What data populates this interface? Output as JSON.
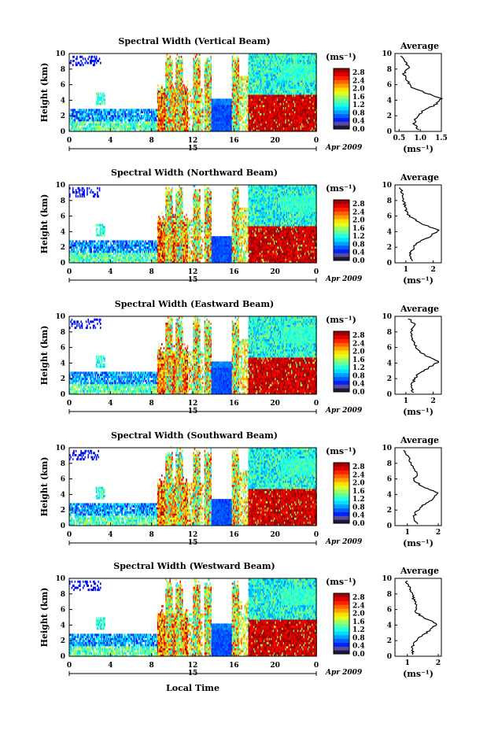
{
  "figure": {
    "x_axis_label": "Local Time",
    "y_axis_label": "Height (km)",
    "date_label": "Apr 2009",
    "day_label": "15",
    "colorbar_unit": "(ms⁻¹)",
    "average_title": "Average",
    "average_unit": "(ms⁻¹)"
  },
  "chart_data": [
    {
      "type": "heatmap",
      "title": "Spectral Width (Vertical Beam)",
      "x_ticks": [
        "0",
        "4",
        "8",
        "12",
        "16",
        "20",
        "0"
      ],
      "y_ticks": [
        "0",
        "2",
        "4",
        "6",
        "8",
        "10"
      ],
      "xlim": [
        0,
        24
      ],
      "ylim": [
        0,
        10
      ],
      "colorbar_ticks": [
        "0.0",
        "0.4",
        "0.8",
        "1.2",
        "1.6",
        "2.0",
        "2.4",
        "2.8"
      ],
      "colorbar_range": [
        0,
        3.0
      ],
      "average_profile": {
        "title": "Average",
        "x_ticks": [
          "0.5",
          "1.0",
          "1.5"
        ],
        "xlim": [
          0.4,
          1.5
        ],
        "heights": [
          0.2,
          1.0,
          1.8,
          2.6,
          3.4,
          4.2,
          5.0,
          5.8,
          6.6,
          7.4,
          8.2,
          9.0,
          9.8
        ],
        "values": [
          0.95,
          0.85,
          0.9,
          1.05,
          1.35,
          1.5,
          1.1,
          0.75,
          0.7,
          0.6,
          0.75,
          0.62,
          0.55
        ]
      }
    },
    {
      "type": "heatmap",
      "title": "Spectral Width (Northward Beam)",
      "x_ticks": [
        "0",
        "4",
        "8",
        "12",
        "16",
        "20",
        "0"
      ],
      "y_ticks": [
        "0",
        "2",
        "4",
        "6",
        "8",
        "10"
      ],
      "xlim": [
        0,
        24
      ],
      "ylim": [
        0,
        10
      ],
      "colorbar_ticks": [
        "0.0",
        "0.4",
        "0.8",
        "1.2",
        "1.6",
        "2.0",
        "2.4",
        "2.8"
      ],
      "colorbar_range": [
        0,
        3.0
      ],
      "average_profile": {
        "title": "Average",
        "x_ticks": [
          "1",
          "2"
        ],
        "xlim": [
          0.6,
          2.3
        ],
        "heights": [
          0.2,
          1.0,
          1.8,
          2.6,
          3.4,
          4.2,
          5.0,
          5.8,
          6.6,
          7.4,
          8.2,
          9.0,
          9.8
        ],
        "values": [
          1.2,
          1.15,
          1.25,
          1.4,
          1.9,
          2.2,
          1.6,
          1.2,
          1.0,
          0.95,
          0.9,
          0.85,
          0.8
        ]
      }
    },
    {
      "type": "heatmap",
      "title": "Spectral Width (Eastward Beam)",
      "x_ticks": [
        "0",
        "4",
        "8",
        "12",
        "16",
        "20",
        "0"
      ],
      "y_ticks": [
        "0",
        "2",
        "4",
        "6",
        "8",
        "10"
      ],
      "xlim": [
        0,
        24
      ],
      "ylim": [
        0,
        10
      ],
      "colorbar_ticks": [
        "0.0",
        "0.4",
        "0.8",
        "1.2",
        "1.6",
        "2.0",
        "2.4",
        "2.8"
      ],
      "colorbar_range": [
        0,
        3.0
      ],
      "average_profile": {
        "title": "Average",
        "x_ticks": [
          "1",
          "2"
        ],
        "xlim": [
          0.6,
          2.3
        ],
        "heights": [
          0.2,
          1.0,
          1.8,
          2.6,
          3.4,
          4.2,
          5.0,
          5.8,
          6.6,
          7.4,
          8.2,
          9.0,
          9.8
        ],
        "values": [
          1.25,
          1.2,
          1.3,
          1.45,
          1.85,
          2.2,
          1.7,
          1.4,
          1.3,
          1.2,
          1.2,
          1.3,
          1.1
        ]
      }
    },
    {
      "type": "heatmap",
      "title": "Spectral Width (Southward Beam)",
      "x_ticks": [
        "0",
        "4",
        "8",
        "12",
        "16",
        "20",
        "0"
      ],
      "y_ticks": [
        "0",
        "2",
        "4",
        "6",
        "8",
        "10"
      ],
      "xlim": [
        0,
        24
      ],
      "ylim": [
        0,
        10
      ],
      "colorbar_ticks": [
        "0.0",
        "0.4",
        "0.8",
        "1.2",
        "1.6",
        "2.0",
        "2.4",
        "2.8"
      ],
      "colorbar_range": [
        0,
        3.0
      ],
      "average_profile": {
        "title": "Average",
        "x_ticks": [
          "1",
          "2"
        ],
        "xlim": [
          0.6,
          2.1
        ],
        "heights": [
          0.2,
          1.0,
          1.8,
          2.6,
          3.4,
          4.2,
          5.0,
          5.8,
          6.6,
          7.4,
          8.2,
          9.0,
          9.8
        ],
        "values": [
          1.3,
          1.2,
          1.3,
          1.5,
          1.8,
          2.0,
          1.5,
          1.2,
          1.3,
          1.2,
          1.1,
          1.0,
          0.9
        ]
      }
    },
    {
      "type": "heatmap",
      "title": "Spectral Width (Westward Beam)",
      "x_ticks": [
        "0",
        "4",
        "8",
        "12",
        "16",
        "20",
        "0"
      ],
      "y_ticks": [
        "0",
        "2",
        "4",
        "6",
        "8",
        "10"
      ],
      "xlim": [
        0,
        24
      ],
      "ylim": [
        0,
        10
      ],
      "colorbar_ticks": [
        "0.0",
        "0.4",
        "0.8",
        "1.2",
        "1.6",
        "2.0",
        "2.4",
        "2.8"
      ],
      "colorbar_range": [
        0,
        3.0
      ],
      "average_profile": {
        "title": "Average",
        "x_ticks": [
          "1",
          "2"
        ],
        "xlim": [
          0.6,
          2.1
        ],
        "heights": [
          0.2,
          1.0,
          1.8,
          2.6,
          3.4,
          4.2,
          5.0,
          5.8,
          6.6,
          7.4,
          8.2,
          9.0,
          9.8
        ],
        "values": [
          1.2,
          1.15,
          1.25,
          1.45,
          1.75,
          1.95,
          1.5,
          1.25,
          1.3,
          1.2,
          1.15,
          1.05,
          0.95
        ]
      }
    }
  ]
}
